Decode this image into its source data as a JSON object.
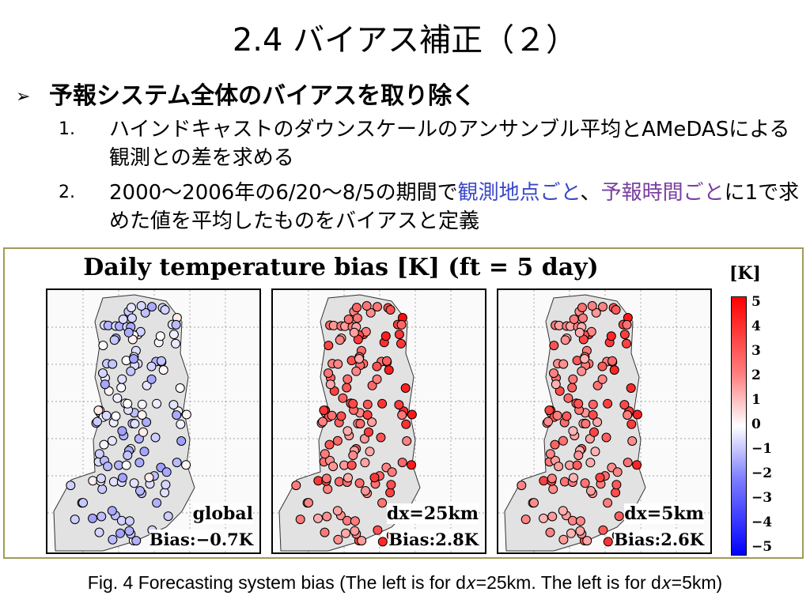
{
  "slide": {
    "title": "2.4 バイアス補正（２）",
    "bullet_marker": "➢",
    "bullet": "予報システム全体のバイアスを取り除く",
    "items": [
      {
        "num": "1.",
        "text": "ハインドキャストのダウンスケールのアンサンブル平均とAMeDASによる観測との差を求める"
      },
      {
        "num": "2.",
        "pre": "2000～2006年の6/20～8/5の期間で",
        "hl1": "観測地点ごと",
        "mid": "、",
        "hl2": "予報時間ごと",
        "post": "に1で求めた値を平均したものをバイアスと定義"
      }
    ]
  },
  "figure": {
    "title": "Daily temperature bias [K] (ft = 5 day)",
    "unit": "[K]",
    "colorbar_ticks": [
      "5",
      "4",
      "3",
      "2",
      "1",
      "0",
      "−1",
      "−2",
      "−3",
      "−4",
      "−5"
    ],
    "colors": {
      "warm": "#ff0000",
      "cold": "#0000ff",
      "neutral": "#ffffff"
    },
    "panels": [
      {
        "label": "global",
        "bias": "Bias:−0.7K",
        "mean": -0.7
      },
      {
        "label": "dx=25km",
        "bias": "Bias:2.8K",
        "mean": 2.8
      },
      {
        "label": "dx=5km",
        "bias": "Bias:2.6K",
        "mean": 2.6
      }
    ]
  },
  "caption": "Fig. 4 Forecasting system bias (The left is for d𝑥=25km. The left is for d𝑥=5km)"
}
